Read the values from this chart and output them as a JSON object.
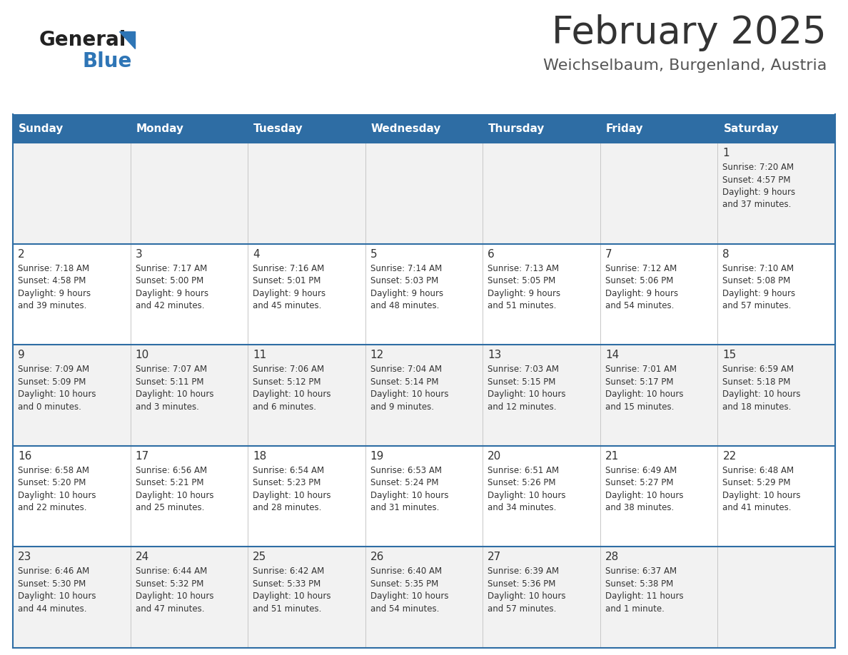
{
  "title": "February 2025",
  "subtitle": "Weichselbaum, Burgenland, Austria",
  "header_bg": "#2E6DA4",
  "header_text_color": "#FFFFFF",
  "cell_bg_light": "#F2F2F2",
  "cell_bg_white": "#FFFFFF",
  "day_headers": [
    "Sunday",
    "Monday",
    "Tuesday",
    "Wednesday",
    "Thursday",
    "Friday",
    "Saturday"
  ],
  "title_color": "#333333",
  "subtitle_color": "#555555",
  "day_number_color": "#333333",
  "info_color": "#333333",
  "divider_color": "#2E6DA4",
  "logo_general_color": "#222222",
  "logo_blue_color": "#2E75B6",
  "calendar_data": [
    [
      null,
      null,
      null,
      null,
      null,
      null,
      {
        "day": 1,
        "sunrise": "7:20 AM",
        "sunset": "4:57 PM",
        "daylight": "9 hours and 37 minutes."
      }
    ],
    [
      {
        "day": 2,
        "sunrise": "7:18 AM",
        "sunset": "4:58 PM",
        "daylight": "9 hours and 39 minutes."
      },
      {
        "day": 3,
        "sunrise": "7:17 AM",
        "sunset": "5:00 PM",
        "daylight": "9 hours and 42 minutes."
      },
      {
        "day": 4,
        "sunrise": "7:16 AM",
        "sunset": "5:01 PM",
        "daylight": "9 hours and 45 minutes."
      },
      {
        "day": 5,
        "sunrise": "7:14 AM",
        "sunset": "5:03 PM",
        "daylight": "9 hours and 48 minutes."
      },
      {
        "day": 6,
        "sunrise": "7:13 AM",
        "sunset": "5:05 PM",
        "daylight": "9 hours and 51 minutes."
      },
      {
        "day": 7,
        "sunrise": "7:12 AM",
        "sunset": "5:06 PM",
        "daylight": "9 hours and 54 minutes."
      },
      {
        "day": 8,
        "sunrise": "7:10 AM",
        "sunset": "5:08 PM",
        "daylight": "9 hours and 57 minutes."
      }
    ],
    [
      {
        "day": 9,
        "sunrise": "7:09 AM",
        "sunset": "5:09 PM",
        "daylight": "10 hours and 0 minutes."
      },
      {
        "day": 10,
        "sunrise": "7:07 AM",
        "sunset": "5:11 PM",
        "daylight": "10 hours and 3 minutes."
      },
      {
        "day": 11,
        "sunrise": "7:06 AM",
        "sunset": "5:12 PM",
        "daylight": "10 hours and 6 minutes."
      },
      {
        "day": 12,
        "sunrise": "7:04 AM",
        "sunset": "5:14 PM",
        "daylight": "10 hours and 9 minutes."
      },
      {
        "day": 13,
        "sunrise": "7:03 AM",
        "sunset": "5:15 PM",
        "daylight": "10 hours and 12 minutes."
      },
      {
        "day": 14,
        "sunrise": "7:01 AM",
        "sunset": "5:17 PM",
        "daylight": "10 hours and 15 minutes."
      },
      {
        "day": 15,
        "sunrise": "6:59 AM",
        "sunset": "5:18 PM",
        "daylight": "10 hours and 18 minutes."
      }
    ],
    [
      {
        "day": 16,
        "sunrise": "6:58 AM",
        "sunset": "5:20 PM",
        "daylight": "10 hours and 22 minutes."
      },
      {
        "day": 17,
        "sunrise": "6:56 AM",
        "sunset": "5:21 PM",
        "daylight": "10 hours and 25 minutes."
      },
      {
        "day": 18,
        "sunrise": "6:54 AM",
        "sunset": "5:23 PM",
        "daylight": "10 hours and 28 minutes."
      },
      {
        "day": 19,
        "sunrise": "6:53 AM",
        "sunset": "5:24 PM",
        "daylight": "10 hours and 31 minutes."
      },
      {
        "day": 20,
        "sunrise": "6:51 AM",
        "sunset": "5:26 PM",
        "daylight": "10 hours and 34 minutes."
      },
      {
        "day": 21,
        "sunrise": "6:49 AM",
        "sunset": "5:27 PM",
        "daylight": "10 hours and 38 minutes."
      },
      {
        "day": 22,
        "sunrise": "6:48 AM",
        "sunset": "5:29 PM",
        "daylight": "10 hours and 41 minutes."
      }
    ],
    [
      {
        "day": 23,
        "sunrise": "6:46 AM",
        "sunset": "5:30 PM",
        "daylight": "10 hours and 44 minutes."
      },
      {
        "day": 24,
        "sunrise": "6:44 AM",
        "sunset": "5:32 PM",
        "daylight": "10 hours and 47 minutes."
      },
      {
        "day": 25,
        "sunrise": "6:42 AM",
        "sunset": "5:33 PM",
        "daylight": "10 hours and 51 minutes."
      },
      {
        "day": 26,
        "sunrise": "6:40 AM",
        "sunset": "5:35 PM",
        "daylight": "10 hours and 54 minutes."
      },
      {
        "day": 27,
        "sunrise": "6:39 AM",
        "sunset": "5:36 PM",
        "daylight": "10 hours and 57 minutes."
      },
      {
        "day": 28,
        "sunrise": "6:37 AM",
        "sunset": "5:38 PM",
        "daylight": "11 hours and 1 minute."
      },
      null
    ]
  ],
  "figsize": [
    11.88,
    9.18
  ],
  "dpi": 100
}
